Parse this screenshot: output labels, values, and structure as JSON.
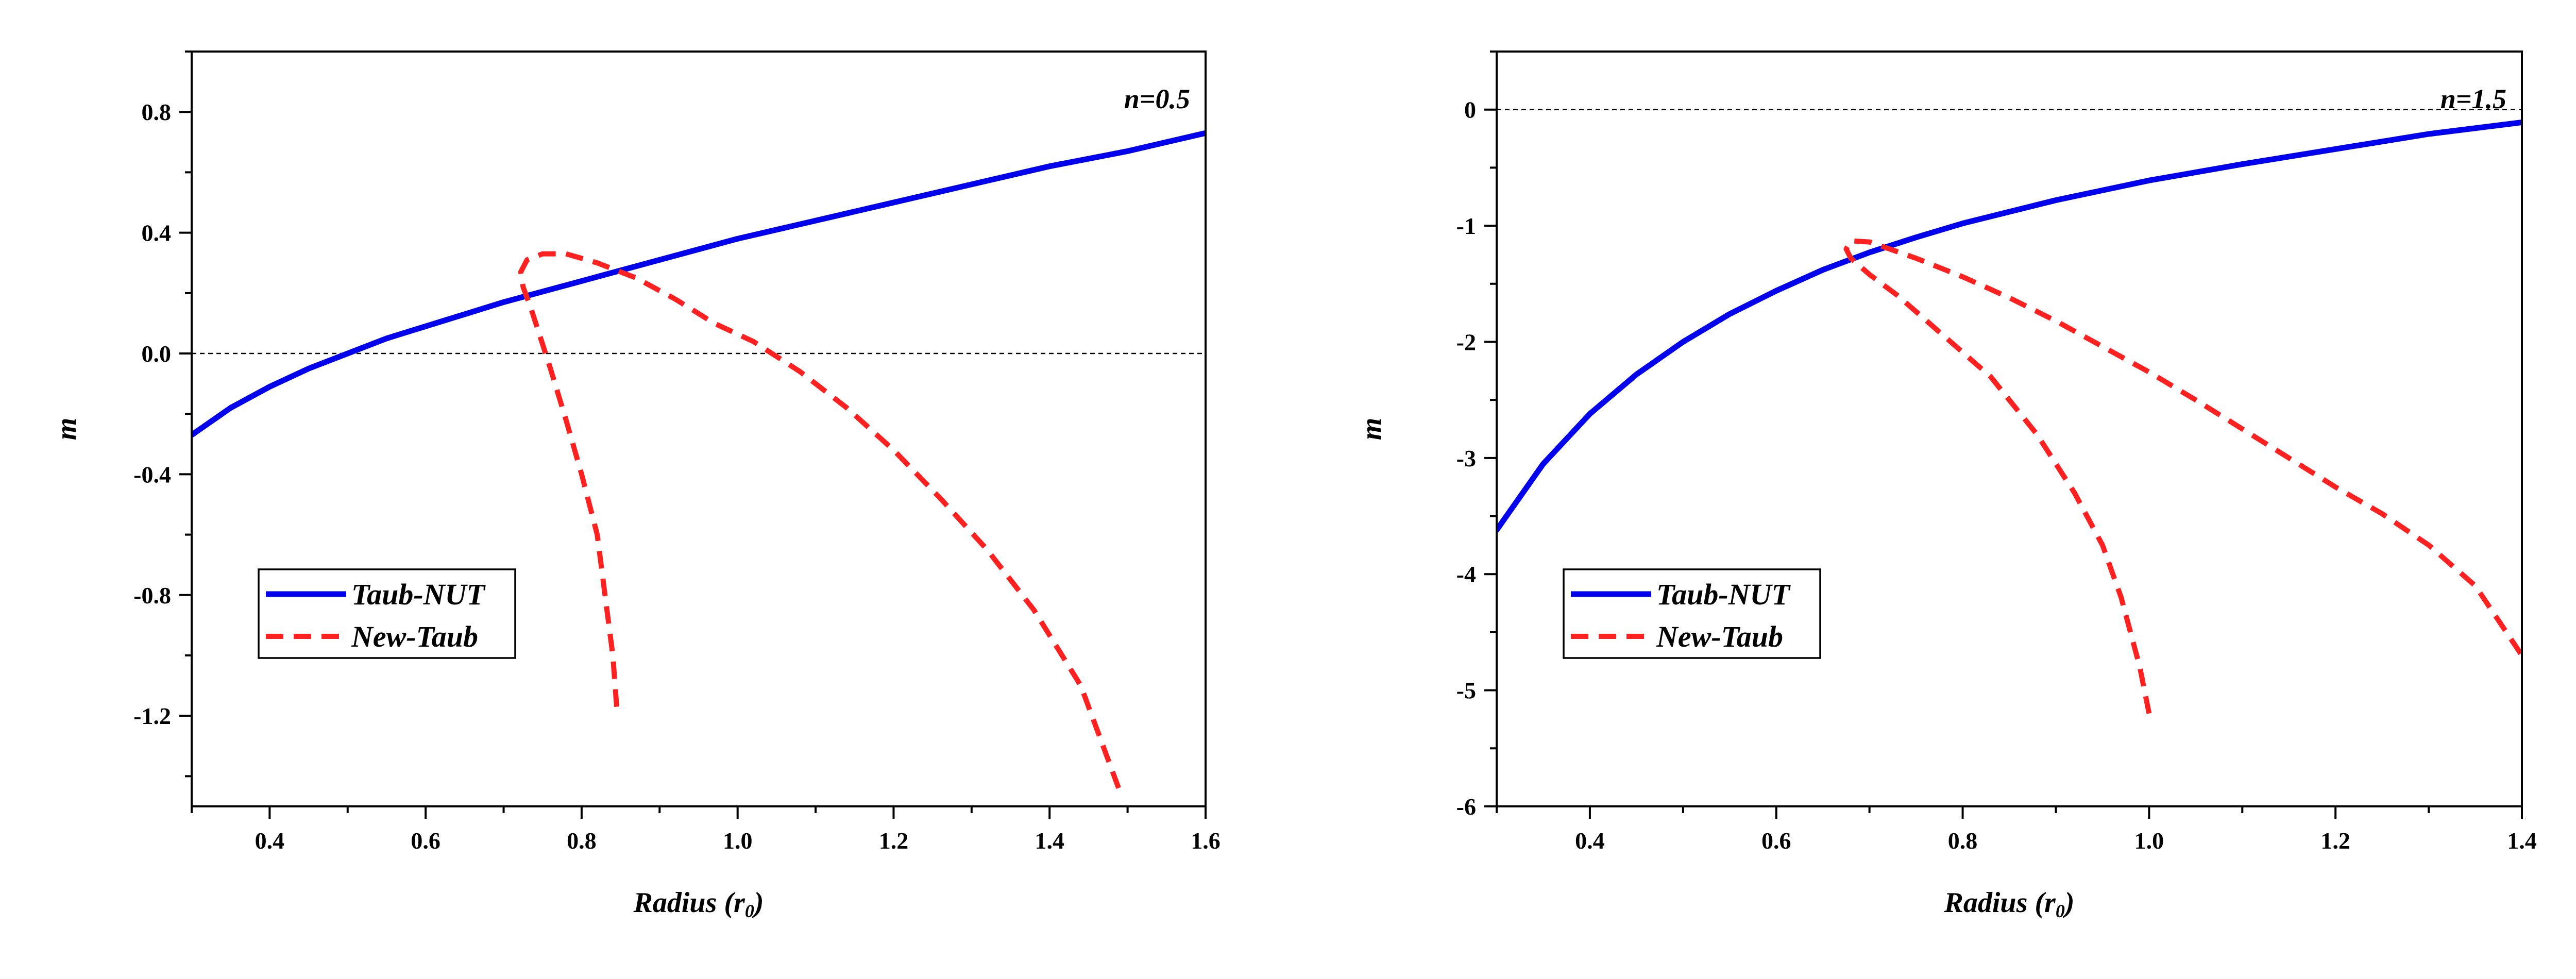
{
  "chart_data": [
    {
      "type": "line",
      "annotation": "n=0.5",
      "xlabel": "Radius (r",
      "xlabel_sub": "0",
      "xlabel_close": ")",
      "ylabel": "m",
      "xlim": [
        0.3,
        1.6
      ],
      "ylim": [
        -1.5,
        1.0
      ],
      "xticks": [
        0.4,
        0.6,
        0.8,
        1.0,
        1.2,
        1.4,
        1.6
      ],
      "xtick_labels": [
        "0.4",
        "0.6",
        "0.8",
        "1.0",
        "1.2",
        "1.4",
        "1.6"
      ],
      "yticks": [
        0.8,
        0.4,
        0.0,
        -0.4,
        -0.8,
        -1.2
      ],
      "ytick_labels": [
        "0.8",
        "0.4",
        "0.0",
        "-0.4",
        "-0.8",
        "-1.2"
      ],
      "reference_line_y": 0.0,
      "legend_position": "lower-left",
      "series": [
        {
          "name": "Taub-NUT",
          "color": "#0000ee",
          "style": "solid",
          "x": [
            0.3,
            0.35,
            0.4,
            0.45,
            0.5,
            0.55,
            0.6,
            0.7,
            0.8,
            0.9,
            1.0,
            1.1,
            1.2,
            1.3,
            1.4,
            1.5,
            1.6
          ],
          "y": [
            -0.27,
            -0.18,
            -0.11,
            -0.05,
            0.0,
            0.05,
            0.09,
            0.17,
            0.24,
            0.31,
            0.38,
            0.44,
            0.5,
            0.56,
            0.62,
            0.67,
            0.73
          ]
        },
        {
          "name": "New-Taub",
          "color": "#ff2020",
          "style": "dashed",
          "x": [
            0.845,
            0.84,
            0.83,
            0.82,
            0.8,
            0.78,
            0.76,
            0.745,
            0.735,
            0.725,
            0.722,
            0.73,
            0.75,
            0.78,
            0.82,
            0.87,
            0.92,
            0.97,
            1.02,
            1.08,
            1.14,
            1.2,
            1.26,
            1.32,
            1.38,
            1.44,
            1.49
          ],
          "y": [
            -1.17,
            -1.0,
            -0.8,
            -0.6,
            -0.4,
            -0.22,
            -0.05,
            0.07,
            0.15,
            0.22,
            0.27,
            0.31,
            0.33,
            0.33,
            0.3,
            0.25,
            0.18,
            0.1,
            0.04,
            -0.06,
            -0.18,
            -0.32,
            -0.48,
            -0.65,
            -0.85,
            -1.1,
            -1.45
          ]
        }
      ]
    },
    {
      "type": "line",
      "annotation": "n=1.5",
      "xlabel": "Radius (r",
      "xlabel_sub": "0",
      "xlabel_close": ")",
      "ylabel": "m",
      "xlim": [
        0.3,
        1.4
      ],
      "ylim": [
        -6.0,
        0.5
      ],
      "xticks": [
        0.4,
        0.6,
        0.8,
        1.0,
        1.2,
        1.4
      ],
      "xtick_labels": [
        "0.4",
        "0.6",
        "0.8",
        "1.0",
        "1.2",
        "1.4"
      ],
      "yticks": [
        0,
        -1,
        -2,
        -3,
        -4,
        -5,
        -6
      ],
      "ytick_labels": [
        "0",
        "-1",
        "-2",
        "-3",
        "-4",
        "-5",
        "-6"
      ],
      "reference_line_y": 0,
      "legend_position": "lower-left",
      "series": [
        {
          "name": "Taub-NUT",
          "color": "#0000ee",
          "style": "solid",
          "x": [
            0.3,
            0.35,
            0.4,
            0.45,
            0.5,
            0.55,
            0.6,
            0.65,
            0.7,
            0.75,
            0.8,
            0.9,
            1.0,
            1.1,
            1.2,
            1.3,
            1.4
          ],
          "y": [
            -3.62,
            -3.05,
            -2.62,
            -2.28,
            -2.0,
            -1.76,
            -1.56,
            -1.38,
            -1.23,
            -1.1,
            -0.98,
            -0.78,
            -0.61,
            -0.47,
            -0.34,
            -0.21,
            -0.11
          ]
        },
        {
          "name": "New-Taub",
          "color": "#ff2020",
          "style": "dashed",
          "x": [
            1.0,
            0.99,
            0.97,
            0.95,
            0.92,
            0.88,
            0.83,
            0.78,
            0.73,
            0.7,
            0.68,
            0.675,
            0.68,
            0.7,
            0.75,
            0.8,
            0.85,
            0.9,
            0.95,
            1.0,
            1.05,
            1.1,
            1.15,
            1.2,
            1.25,
            1.3,
            1.35,
            1.4
          ],
          "y": [
            -5.2,
            -4.8,
            -4.2,
            -3.75,
            -3.3,
            -2.8,
            -2.3,
            -1.95,
            -1.6,
            -1.42,
            -1.28,
            -1.2,
            -1.13,
            -1.14,
            -1.28,
            -1.44,
            -1.62,
            -1.82,
            -2.04,
            -2.26,
            -2.5,
            -2.75,
            -3.0,
            -3.25,
            -3.48,
            -3.75,
            -4.1,
            -4.7
          ]
        }
      ]
    }
  ]
}
